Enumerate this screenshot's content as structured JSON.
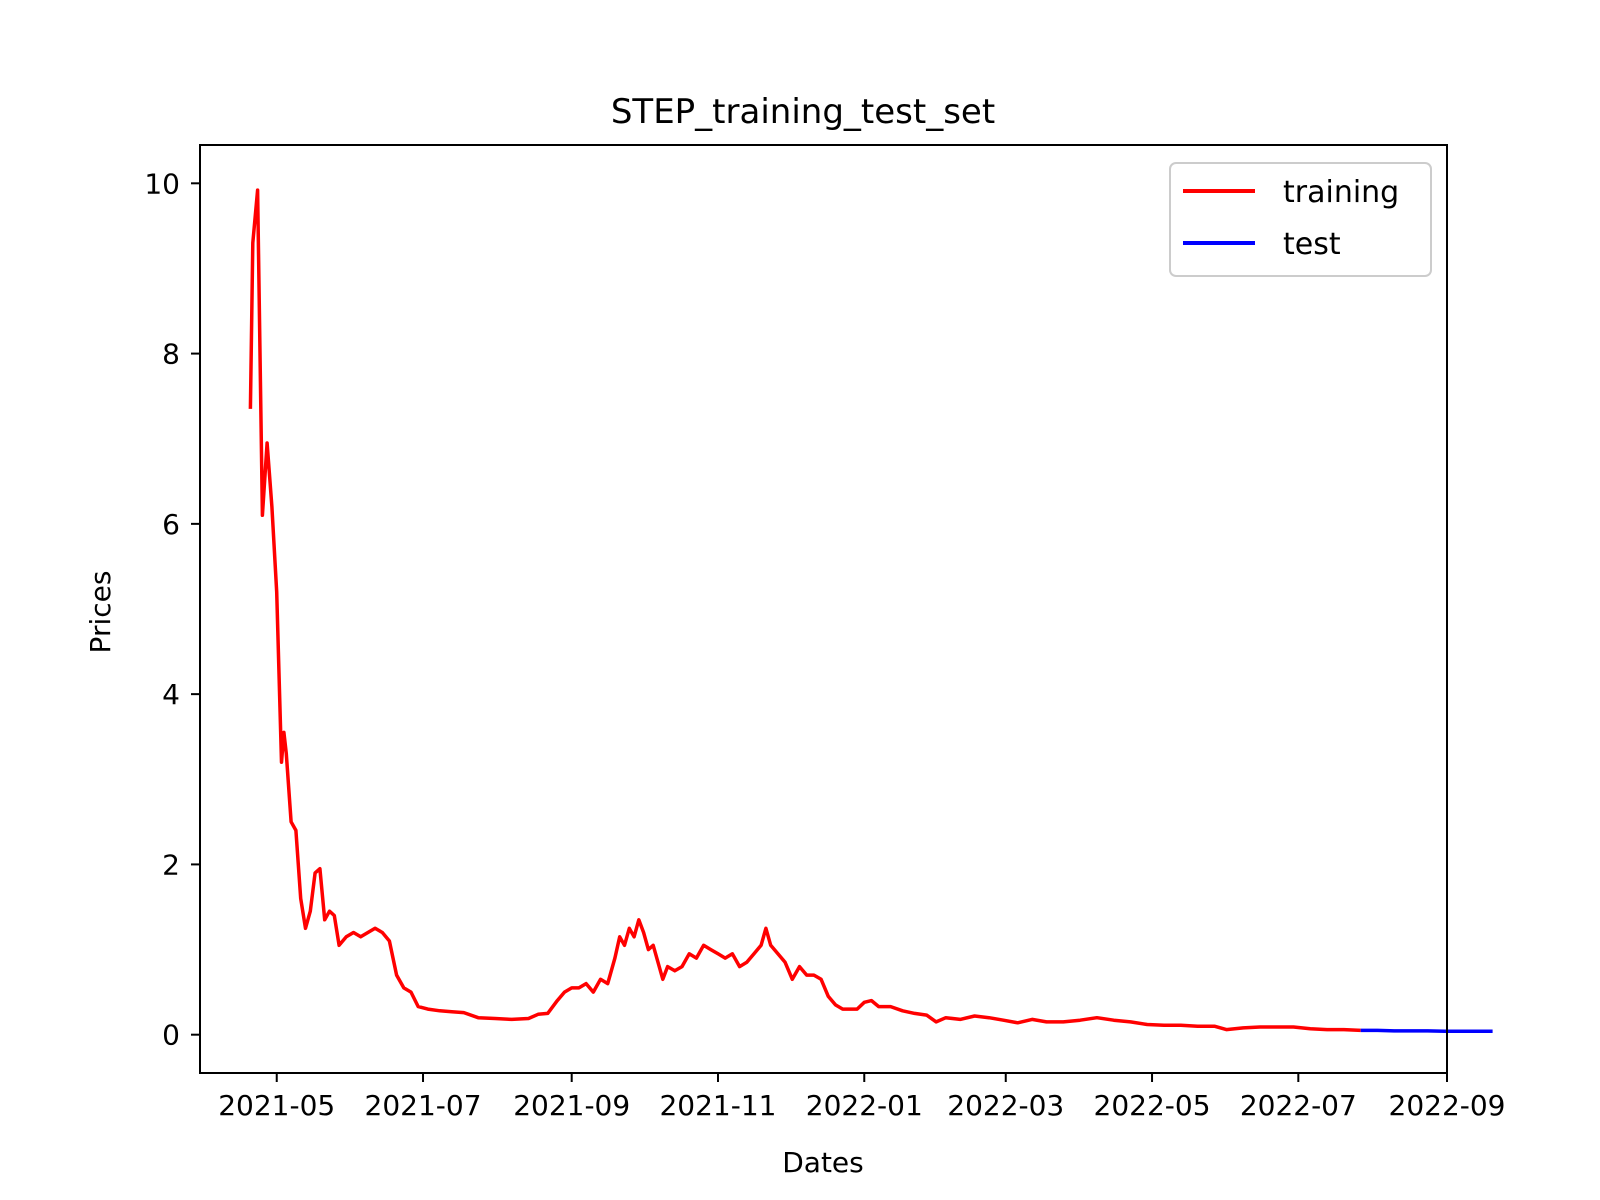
{
  "chart_data": {
    "type": "line",
    "title": "STEP_training_test_set",
    "xlabel": "Dates",
    "ylabel": "Prices",
    "xlim": [
      "2021-03-30",
      "2022-09-01"
    ],
    "ylim": [
      -0.45,
      10.45
    ],
    "x_ticks": [
      "2021-05",
      "2021-07",
      "2021-09",
      "2021-11",
      "2022-01",
      "2022-03",
      "2022-05",
      "2022-07",
      "2022-09"
    ],
    "y_ticks": [
      0,
      2,
      4,
      6,
      8,
      10
    ],
    "grid": false,
    "legend_position": "top-right",
    "series": [
      {
        "name": "training",
        "color": "#ff0000",
        "points": [
          [
            "2021-04-20",
            7.35
          ],
          [
            "2021-04-21",
            9.3
          ],
          [
            "2021-04-23",
            9.92
          ],
          [
            "2021-04-25",
            6.1
          ],
          [
            "2021-04-27",
            6.95
          ],
          [
            "2021-04-29",
            6.2
          ],
          [
            "2021-05-01",
            5.2
          ],
          [
            "2021-05-03",
            3.2
          ],
          [
            "2021-05-04",
            3.55
          ],
          [
            "2021-05-05",
            3.3
          ],
          [
            "2021-05-07",
            2.5
          ],
          [
            "2021-05-09",
            2.4
          ],
          [
            "2021-05-11",
            1.6
          ],
          [
            "2021-05-13",
            1.25
          ],
          [
            "2021-05-15",
            1.45
          ],
          [
            "2021-05-17",
            1.9
          ],
          [
            "2021-05-19",
            1.95
          ],
          [
            "2021-05-21",
            1.35
          ],
          [
            "2021-05-23",
            1.45
          ],
          [
            "2021-05-25",
            1.4
          ],
          [
            "2021-05-27",
            1.05
          ],
          [
            "2021-05-30",
            1.15
          ],
          [
            "2021-06-02",
            1.2
          ],
          [
            "2021-06-05",
            1.15
          ],
          [
            "2021-06-08",
            1.2
          ],
          [
            "2021-06-11",
            1.25
          ],
          [
            "2021-06-14",
            1.2
          ],
          [
            "2021-06-17",
            1.1
          ],
          [
            "2021-06-20",
            0.7
          ],
          [
            "2021-06-23",
            0.55
          ],
          [
            "2021-06-26",
            0.5
          ],
          [
            "2021-06-29",
            0.33
          ],
          [
            "2021-07-03",
            0.3
          ],
          [
            "2021-07-08",
            0.28
          ],
          [
            "2021-07-13",
            0.27
          ],
          [
            "2021-07-18",
            0.26
          ],
          [
            "2021-07-24",
            0.2
          ],
          [
            "2021-07-31",
            0.19
          ],
          [
            "2021-08-07",
            0.18
          ],
          [
            "2021-08-14",
            0.19
          ],
          [
            "2021-08-18",
            0.24
          ],
          [
            "2021-08-22",
            0.25
          ],
          [
            "2021-08-26",
            0.4
          ],
          [
            "2021-08-29",
            0.5
          ],
          [
            "2021-09-01",
            0.55
          ],
          [
            "2021-09-04",
            0.55
          ],
          [
            "2021-09-07",
            0.6
          ],
          [
            "2021-09-10",
            0.5
          ],
          [
            "2021-09-13",
            0.65
          ],
          [
            "2021-09-16",
            0.6
          ],
          [
            "2021-09-19",
            0.9
          ],
          [
            "2021-09-21",
            1.15
          ],
          [
            "2021-09-23",
            1.05
          ],
          [
            "2021-09-25",
            1.25
          ],
          [
            "2021-09-27",
            1.15
          ],
          [
            "2021-09-29",
            1.35
          ],
          [
            "2021-10-01",
            1.2
          ],
          [
            "2021-10-03",
            1.0
          ],
          [
            "2021-10-05",
            1.05
          ],
          [
            "2021-10-07",
            0.85
          ],
          [
            "2021-10-09",
            0.65
          ],
          [
            "2021-10-11",
            0.8
          ],
          [
            "2021-10-14",
            0.75
          ],
          [
            "2021-10-17",
            0.8
          ],
          [
            "2021-10-20",
            0.95
          ],
          [
            "2021-10-23",
            0.9
          ],
          [
            "2021-10-26",
            1.05
          ],
          [
            "2021-10-29",
            1.0
          ],
          [
            "2021-11-01",
            0.95
          ],
          [
            "2021-11-04",
            0.9
          ],
          [
            "2021-11-07",
            0.95
          ],
          [
            "2021-11-10",
            0.8
          ],
          [
            "2021-11-13",
            0.85
          ],
          [
            "2021-11-16",
            0.95
          ],
          [
            "2021-11-19",
            1.05
          ],
          [
            "2021-11-21",
            1.25
          ],
          [
            "2021-11-23",
            1.05
          ],
          [
            "2021-11-26",
            0.95
          ],
          [
            "2021-11-29",
            0.85
          ],
          [
            "2021-12-02",
            0.65
          ],
          [
            "2021-12-05",
            0.8
          ],
          [
            "2021-12-08",
            0.7
          ],
          [
            "2021-12-11",
            0.7
          ],
          [
            "2021-12-14",
            0.65
          ],
          [
            "2021-12-17",
            0.45
          ],
          [
            "2021-12-20",
            0.35
          ],
          [
            "2021-12-23",
            0.3
          ],
          [
            "2021-12-26",
            0.3
          ],
          [
            "2021-12-29",
            0.3
          ],
          [
            "2022-01-01",
            0.38
          ],
          [
            "2022-01-04",
            0.4
          ],
          [
            "2022-01-07",
            0.33
          ],
          [
            "2022-01-12",
            0.33
          ],
          [
            "2022-01-17",
            0.28
          ],
          [
            "2022-01-22",
            0.25
          ],
          [
            "2022-01-27",
            0.23
          ],
          [
            "2022-01-31",
            0.15
          ],
          [
            "2022-02-04",
            0.2
          ],
          [
            "2022-02-10",
            0.18
          ],
          [
            "2022-02-16",
            0.22
          ],
          [
            "2022-02-22",
            0.2
          ],
          [
            "2022-02-28",
            0.17
          ],
          [
            "2022-03-06",
            0.14
          ],
          [
            "2022-03-12",
            0.18
          ],
          [
            "2022-03-18",
            0.15
          ],
          [
            "2022-03-25",
            0.15
          ],
          [
            "2022-04-01",
            0.17
          ],
          [
            "2022-04-08",
            0.2
          ],
          [
            "2022-04-15",
            0.17
          ],
          [
            "2022-04-22",
            0.15
          ],
          [
            "2022-04-29",
            0.12
          ],
          [
            "2022-05-06",
            0.11
          ],
          [
            "2022-05-13",
            0.11
          ],
          [
            "2022-05-20",
            0.1
          ],
          [
            "2022-05-27",
            0.1
          ],
          [
            "2022-06-01",
            0.06
          ],
          [
            "2022-06-08",
            0.08
          ],
          [
            "2022-06-15",
            0.09
          ],
          [
            "2022-06-22",
            0.09
          ],
          [
            "2022-06-29",
            0.09
          ],
          [
            "2022-07-06",
            0.07
          ],
          [
            "2022-07-13",
            0.06
          ],
          [
            "2022-07-20",
            0.06
          ],
          [
            "2022-07-27",
            0.05
          ]
        ]
      },
      {
        "name": "test",
        "color": "#0000ff",
        "points": [
          [
            "2022-07-27",
            0.05
          ],
          [
            "2022-08-03",
            0.05
          ],
          [
            "2022-08-10",
            0.045
          ],
          [
            "2022-08-17",
            0.045
          ],
          [
            "2022-08-24",
            0.045
          ],
          [
            "2022-08-31",
            0.04
          ],
          [
            "2022-09-07",
            0.04
          ],
          [
            "2022-09-14",
            0.04
          ],
          [
            "2022-09-20",
            0.04
          ]
        ]
      }
    ]
  }
}
